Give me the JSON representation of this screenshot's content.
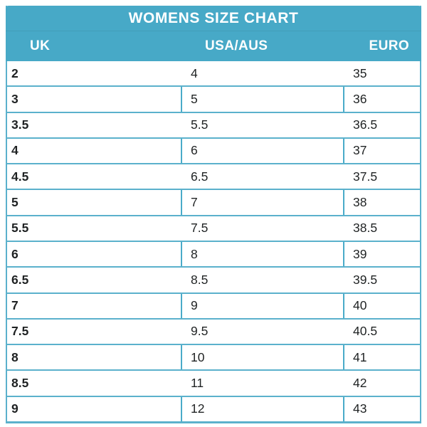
{
  "title": "WOMENS SIZE CHART",
  "colors": {
    "header_teal": "#47a9c7",
    "border_teal": "#5bb1cc",
    "divider_teal": "#4aabc9",
    "text": "#1f2223",
    "header_text": "#ffffff",
    "background": "#ffffff"
  },
  "chart_data": {
    "type": "table",
    "title": "WOMENS SIZE CHART",
    "columns": [
      "UK",
      "USA/AUS",
      "EURO"
    ],
    "rows": [
      [
        "2",
        "4",
        "35"
      ],
      [
        "3",
        "5",
        "36"
      ],
      [
        "3.5",
        "5.5",
        "36.5"
      ],
      [
        "4",
        "6",
        "37"
      ],
      [
        "4.5",
        "6.5",
        "37.5"
      ],
      [
        "5",
        "7",
        "38"
      ],
      [
        "5.5",
        "7.5",
        "38.5"
      ],
      [
        "6",
        "8",
        "39"
      ],
      [
        "6.5",
        "8.5",
        "39.5"
      ],
      [
        "7",
        "9",
        "40"
      ],
      [
        "7.5",
        "9.5",
        "40.5"
      ],
      [
        "8",
        "10",
        "41"
      ],
      [
        "8.5",
        "11",
        "42"
      ],
      [
        "9",
        "12",
        "43"
      ]
    ]
  }
}
